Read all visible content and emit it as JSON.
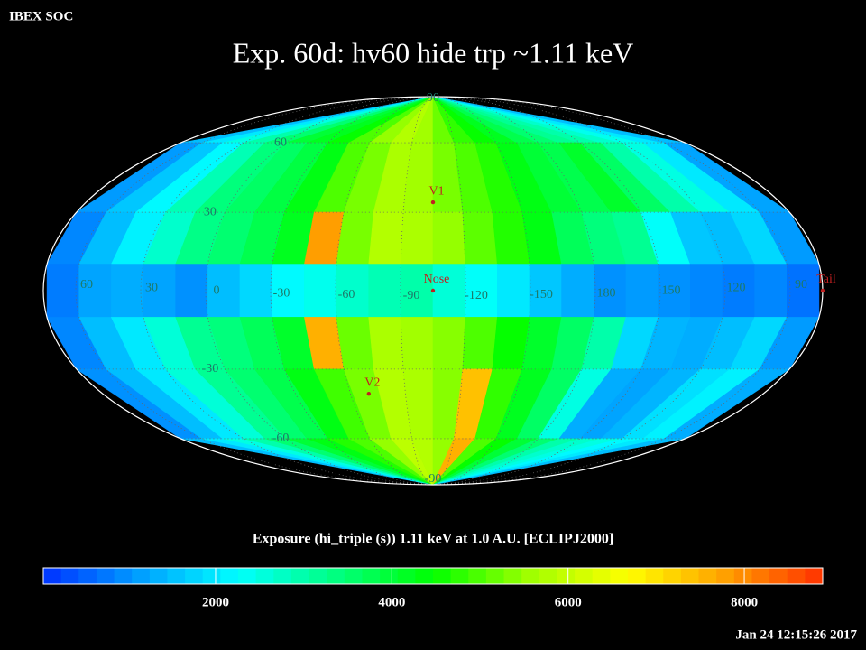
{
  "chart_data": {
    "type": "skymap",
    "header": "IBEX SOC",
    "title": "Exp.   60d: hv60 hide trp ~1.11 keV",
    "colorbar_label": "Exposure (hi_triple (s))  1.11 keV at 1.0 A.U. [ECLIPJ2000]",
    "timestamp": "Jan 24 12:15:26 2017",
    "xlim": [
      75,
      -285
    ],
    "ylim": [
      -90,
      90
    ],
    "x_bins": [
      75,
      60,
      45,
      30,
      15,
      0,
      -15,
      -30,
      -45,
      -60,
      -75,
      -90,
      -105,
      -120,
      -135,
      -150,
      -165,
      -180,
      -195,
      -210,
      -225,
      -240,
      -255,
      -270,
      -285
    ],
    "lat_bins": [
      90,
      60,
      30,
      10,
      -10,
      -30,
      -60,
      -90
    ],
    "values": [
      [
        1500,
        2000,
        2500,
        3000,
        3500,
        4000,
        4200,
        4500,
        5000,
        5500,
        5800,
        5600,
        5200,
        4800,
        4500,
        4200,
        3800,
        3500,
        3200,
        3000,
        2700,
        2400,
        2000,
        1500
      ],
      [
        1100,
        1600,
        2200,
        2900,
        3400,
        3600,
        3900,
        4300,
        5000,
        5300,
        5700,
        5600,
        5300,
        5000,
        4700,
        4300,
        4000,
        3800,
        4100,
        3600,
        3000,
        2500,
        2000,
        1200
      ],
      [
        900,
        1500,
        2100,
        2700,
        3300,
        3500,
        3800,
        4200,
        7800,
        5300,
        5800,
        5700,
        5500,
        5100,
        4700,
        4300,
        3700,
        3400,
        3200,
        2300,
        1600,
        1500,
        1800,
        1100
      ],
      [
        800,
        1200,
        1300,
        1200,
        1000,
        1500,
        1800,
        2200,
        2400,
        2700,
        2900,
        3000,
        2600,
        2300,
        2000,
        1600,
        1300,
        1000,
        1100,
        1000,
        900,
        800,
        900,
        700
      ],
      [
        900,
        1500,
        2000,
        2600,
        3200,
        3400,
        3700,
        4100,
        7600,
        5200,
        5700,
        5600,
        5400,
        5000,
        4500,
        4100,
        3600,
        3000,
        1800,
        1400,
        1300,
        1500,
        1800,
        1100
      ],
      [
        1000,
        1500,
        2000,
        2600,
        3200,
        3500,
        3800,
        4300,
        4900,
        5300,
        5800,
        5700,
        5400,
        7400,
        4800,
        4200,
        3600,
        2500,
        1300,
        1200,
        1400,
        1900,
        2100,
        1300
      ],
      [
        1500,
        2000,
        2500,
        3000,
        3500,
        4000,
        4300,
        4700,
        5000,
        5500,
        5900,
        5800,
        5500,
        7600,
        5000,
        4500,
        4000,
        3500,
        3000,
        2700,
        2500,
        2200,
        2000,
        1500
      ]
    ],
    "xticks": [
      60,
      30,
      0,
      -30,
      -60,
      -90,
      -120,
      -150,
      {
        "value": -180,
        "label": "180"
      },
      {
        "value": -210,
        "label": "150"
      },
      {
        "value": -240,
        "label": "120"
      },
      {
        "value": -270,
        "label": "90"
      }
    ],
    "yticks": [
      90,
      60,
      30,
      -30,
      -60,
      -90
    ],
    "grid": true,
    "markers": [
      {
        "label": "V1",
        "lon": -105,
        "lat": 34
      },
      {
        "label": "Nose",
        "lon": -105,
        "lat": 0
      },
      {
        "label": "V2",
        "lon": -70,
        "lat": -40
      },
      {
        "label": "Tail",
        "lon": -285,
        "lat": 0
      }
    ],
    "colormap": [
      "#0030ff",
      "#00a0ff",
      "#00ffff",
      "#00ff80",
      "#00ff00",
      "#a0ff00",
      "#ffff00",
      "#ffa000",
      "#ff3000"
    ],
    "clim": [
      45,
      8890
    ],
    "cticks": [
      2000,
      4000,
      6000,
      8000
    ]
  }
}
